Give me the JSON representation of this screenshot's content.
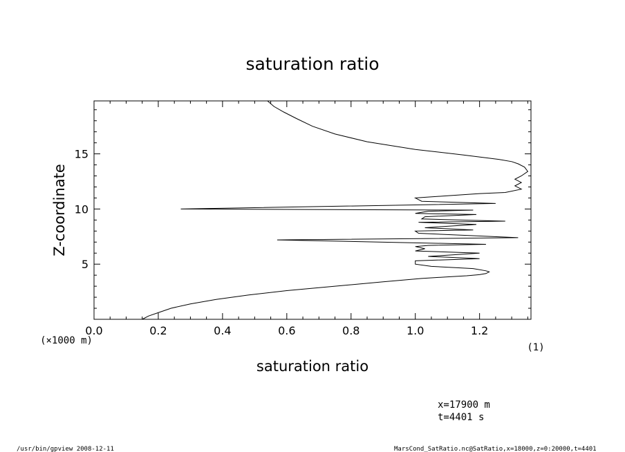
{
  "chart_data": {
    "type": "line",
    "title": "saturation ratio",
    "xlabel": "saturation ratio",
    "ylabel": "Z-coordinate",
    "xunit": "(1)",
    "yunit": "(×1000 m)",
    "xlim": [
      0.0,
      1.36
    ],
    "ylim": [
      0.0,
      19.8
    ],
    "x_ticks": [
      "0.0",
      "0.2",
      "0.4",
      "0.6",
      "0.8",
      "1.0",
      "1.2"
    ],
    "y_ticks": [
      "5",
      "10",
      "15"
    ],
    "grid": false,
    "series": [
      {
        "x": [
          0.15,
          0.17,
          0.2,
          0.24,
          0.3,
          0.38,
          0.48,
          0.6,
          0.75,
          0.9,
          1.02,
          1.1,
          1.16,
          1.2,
          1.22,
          1.23,
          1.22,
          1.18,
          1.05,
          1.0,
          1.0,
          1.2,
          1.04,
          1.2,
          1.0,
          1.03,
          1.0,
          1.04,
          1.22,
          0.57,
          1.32,
          1.01,
          1.0,
          1.18,
          1.03,
          1.19,
          1.01,
          1.28,
          1.02,
          1.03,
          1.19,
          1.0,
          1.04,
          1.18,
          0.27,
          1.25,
          1.02,
          1.0,
          1.1,
          1.2,
          1.28,
          1.33,
          1.31,
          1.33,
          1.31,
          1.33,
          1.35,
          1.34,
          1.32,
          1.3,
          1.26,
          1.15,
          1.0,
          0.85,
          0.75,
          0.68,
          0.63,
          0.59,
          0.56,
          0.54
        ],
        "y": [
          0.0,
          0.3,
          0.6,
          1.0,
          1.4,
          1.8,
          2.2,
          2.6,
          3.0,
          3.4,
          3.7,
          3.85,
          3.95,
          4.05,
          4.15,
          4.3,
          4.4,
          4.6,
          4.8,
          5.0,
          5.3,
          5.5,
          5.7,
          6.0,
          6.2,
          6.4,
          6.6,
          6.7,
          6.8,
          7.2,
          7.4,
          7.8,
          8.0,
          8.1,
          8.3,
          8.6,
          8.8,
          8.9,
          9.1,
          9.3,
          9.5,
          9.6,
          9.8,
          9.9,
          10.0,
          10.5,
          10.7,
          11.0,
          11.2,
          11.4,
          11.5,
          11.8,
          12.1,
          12.4,
          12.7,
          13.0,
          13.4,
          13.8,
          14.1,
          14.3,
          14.5,
          14.9,
          15.4,
          16.1,
          16.8,
          17.5,
          18.2,
          18.8,
          19.3,
          19.8
        ]
      }
    ]
  },
  "footer": {
    "coord_x": "x=17900  m",
    "coord_t": "t=4401  s",
    "program": "/usr/bin/gpview   2008-12-11",
    "source": "MarsCond_SatRatio.nc@SatRatio,x=18000,z=0:20000,t=4401"
  }
}
